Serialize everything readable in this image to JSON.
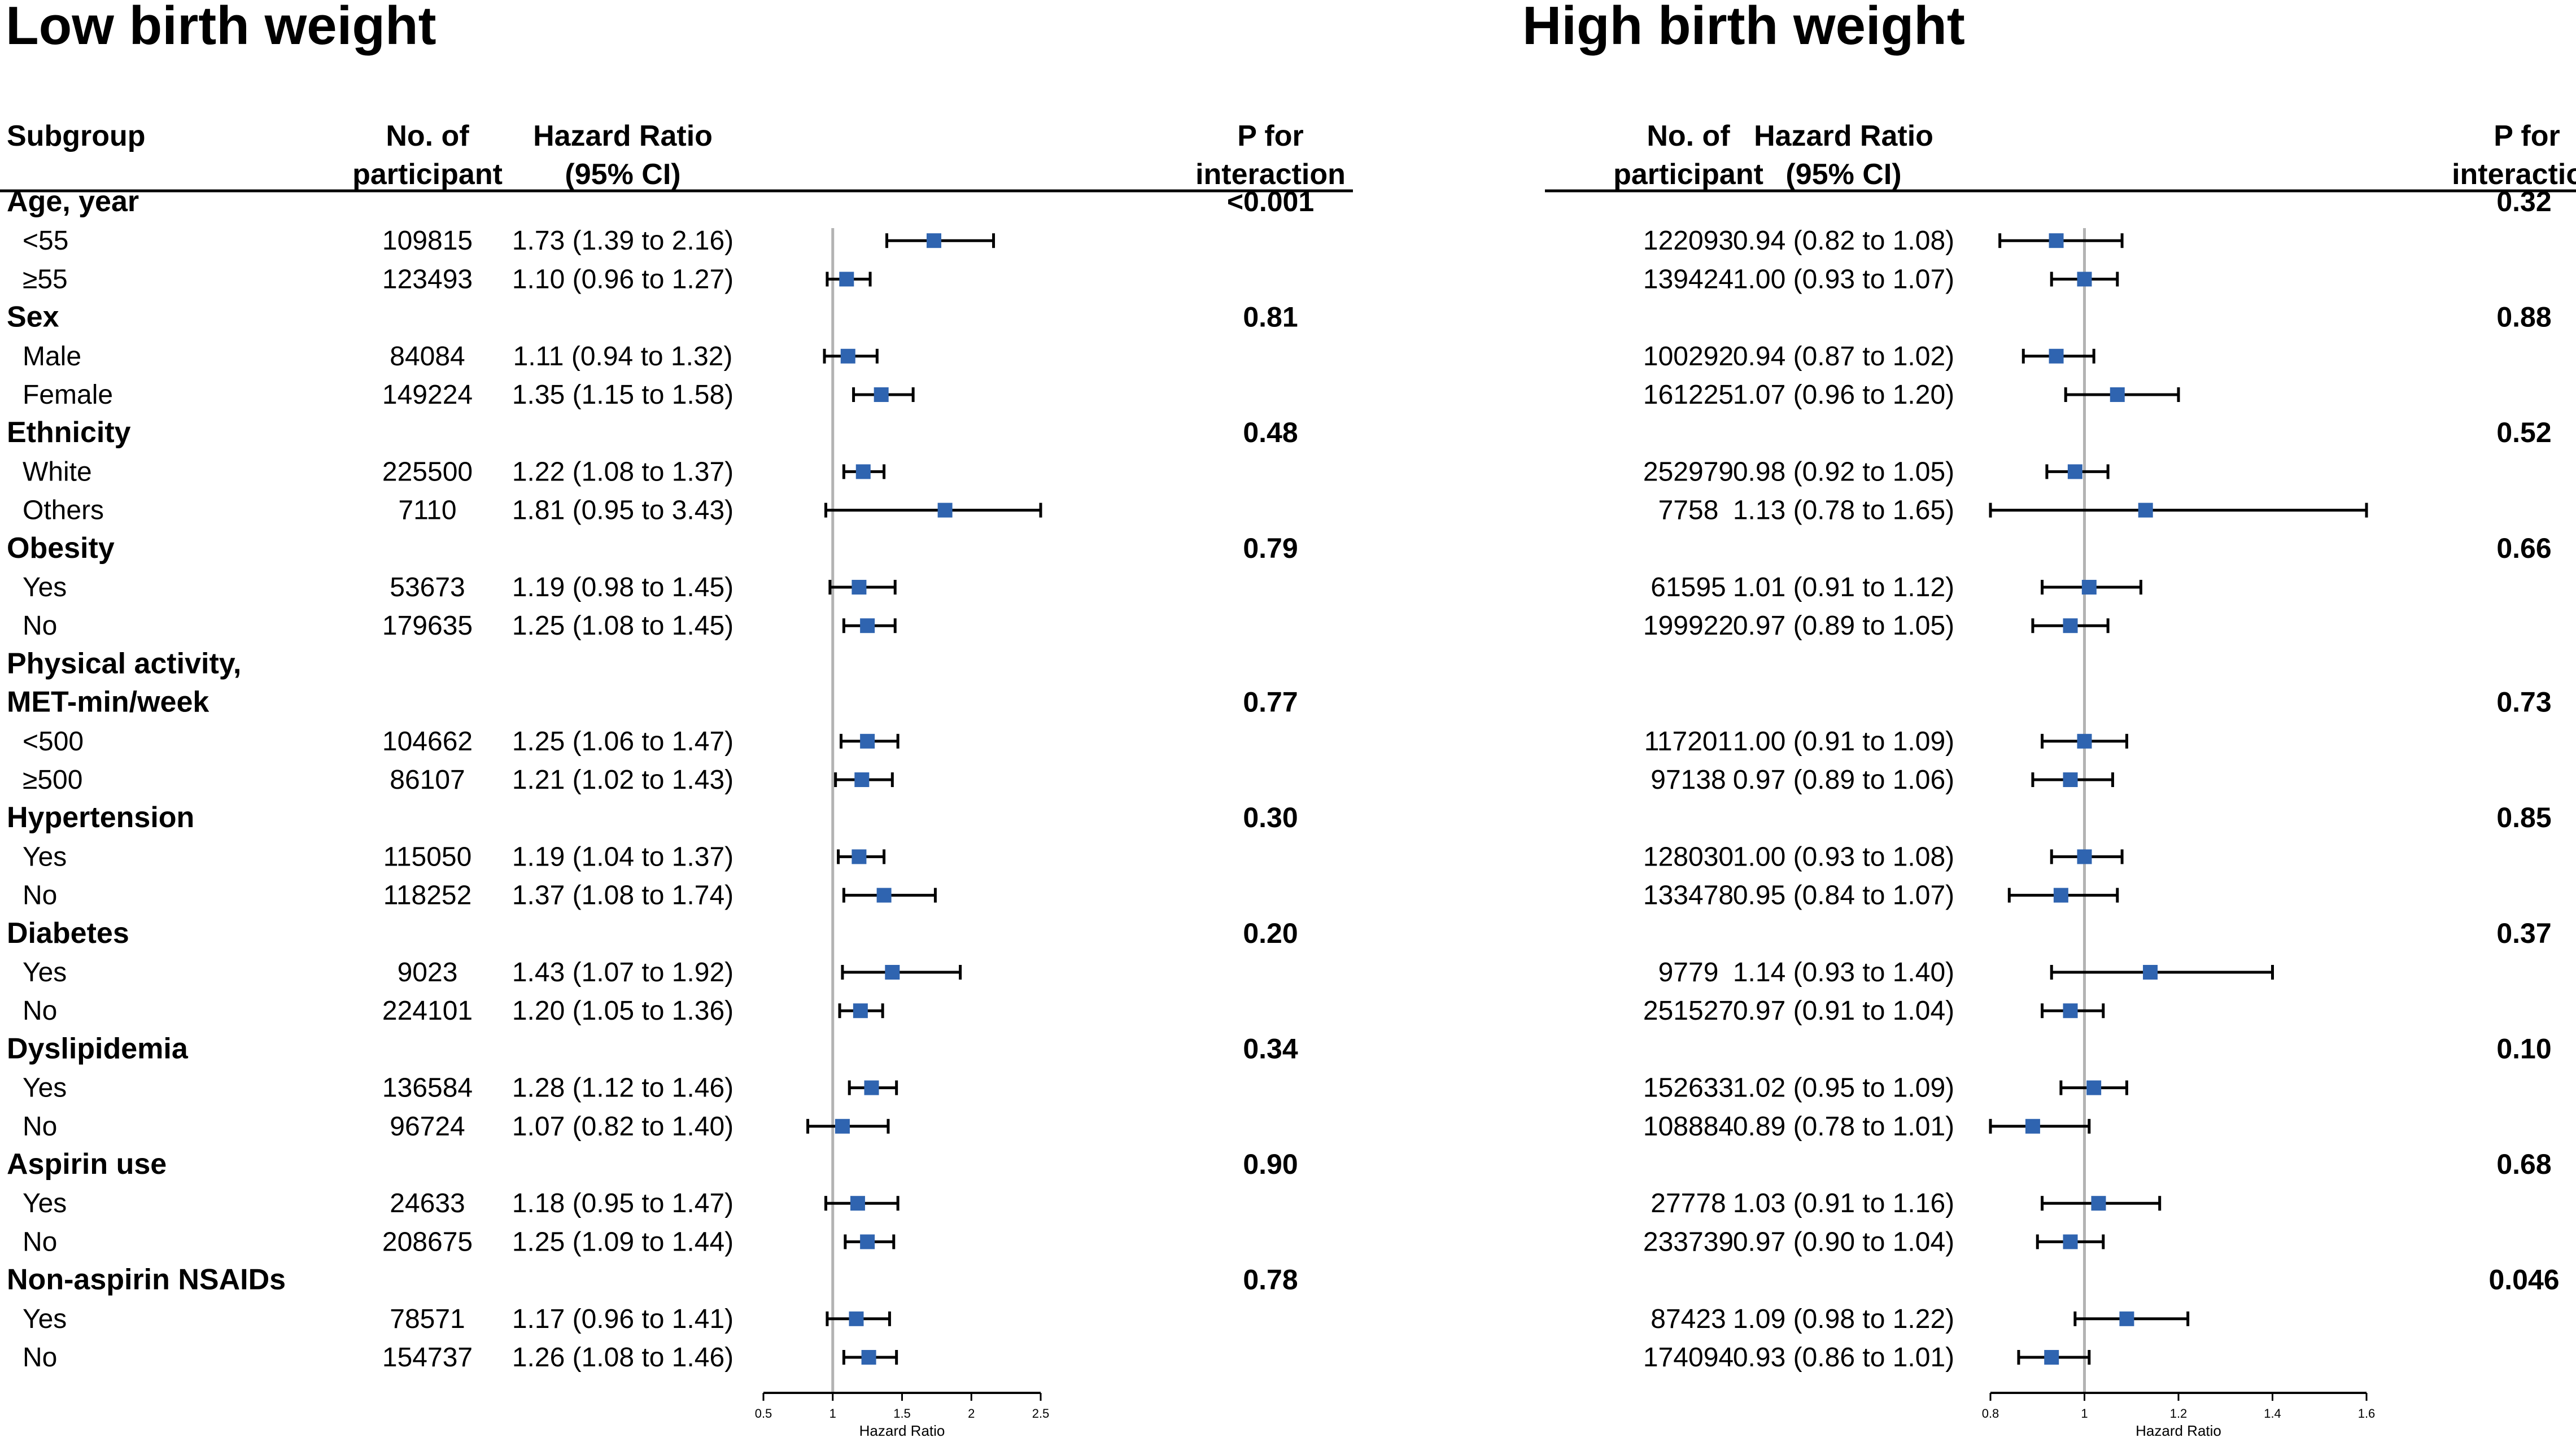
{
  "chart_data": [
    {
      "type": "forest",
      "title": "Low birth weight",
      "headers": {
        "subgroup": [
          "Subgroup"
        ],
        "n": [
          "No. of",
          "participant"
        ],
        "hr": [
          "Hazard Ratio",
          "(95% CI)"
        ],
        "p": [
          "P for",
          "interaction"
        ]
      },
      "xlabel": "Hazard Ratio",
      "xlim": [
        0.5,
        2.5
      ],
      "xticks": [
        "0.5",
        "1",
        "1.5",
        "2",
        "2.5"
      ],
      "reference": 1,
      "rows": [
        {
          "group": "Age, year",
          "p": "<0.001"
        },
        {
          "label": "<55",
          "n": "109815",
          "hr_text": "1.73 (1.39 to 2.16)",
          "hr": 1.73,
          "lo": 1.39,
          "hi": 2.16
        },
        {
          "label": "≥55",
          "n": "123493",
          "hr_text": "1.10 (0.96 to 1.27)",
          "hr": 1.1,
          "lo": 0.96,
          "hi": 1.27
        },
        {
          "group": "Sex",
          "p": "0.81"
        },
        {
          "label": "Male",
          "n": "84084",
          "hr_text": "1.11 (0.94 to 1.32)",
          "hr": 1.11,
          "lo": 0.94,
          "hi": 1.32
        },
        {
          "label": "Female",
          "n": "149224",
          "hr_text": "1.35 (1.15 to 1.58)",
          "hr": 1.35,
          "lo": 1.15,
          "hi": 1.58
        },
        {
          "group": "Ethnicity",
          "p": "0.48"
        },
        {
          "label": "White",
          "n": "225500",
          "hr_text": "1.22 (1.08 to 1.37)",
          "hr": 1.22,
          "lo": 1.08,
          "hi": 1.37
        },
        {
          "label": "Others",
          "n": "7110",
          "hr_text": "1.81 (0.95 to 3.43)",
          "hr": 1.81,
          "lo": 0.95,
          "hi": 3.43
        },
        {
          "group": "Obesity",
          "p": "0.79"
        },
        {
          "label": "Yes",
          "n": "53673",
          "hr_text": "1.19 (0.98 to 1.45)",
          "hr": 1.19,
          "lo": 0.98,
          "hi": 1.45
        },
        {
          "label": "No",
          "n": "179635",
          "hr_text": "1.25 (1.08 to 1.45)",
          "hr": 1.25,
          "lo": 1.08,
          "hi": 1.45
        },
        {
          "group": "Physical activity,"
        },
        {
          "group": "MET-min/week",
          "p": "0.77"
        },
        {
          "label": "<500",
          "n": "104662",
          "hr_text": "1.25 (1.06 to 1.47)",
          "hr": 1.25,
          "lo": 1.06,
          "hi": 1.47
        },
        {
          "label": "≥500",
          "n": "86107",
          "hr_text": "1.21 (1.02 to 1.43)",
          "hr": 1.21,
          "lo": 1.02,
          "hi": 1.43
        },
        {
          "group": "Hypertension",
          "p": "0.30"
        },
        {
          "label": "Yes",
          "n": "115050",
          "hr_text": "1.19 (1.04 to 1.37)",
          "hr": 1.19,
          "lo": 1.04,
          "hi": 1.37
        },
        {
          "label": "No",
          "n": "118252",
          "hr_text": "1.37 (1.08 to 1.74)",
          "hr": 1.37,
          "lo": 1.08,
          "hi": 1.74
        },
        {
          "group": "Diabetes",
          "p": "0.20"
        },
        {
          "label": "Yes",
          "n": "9023",
          "hr_text": "1.43 (1.07 to 1.92)",
          "hr": 1.43,
          "lo": 1.07,
          "hi": 1.92
        },
        {
          "label": "No",
          "n": "224101",
          "hr_text": "1.20 (1.05 to 1.36)",
          "hr": 1.2,
          "lo": 1.05,
          "hi": 1.36
        },
        {
          "group": "Dyslipidemia",
          "p": "0.34"
        },
        {
          "label": "Yes",
          "n": "136584",
          "hr_text": "1.28 (1.12 to 1.46)",
          "hr": 1.28,
          "lo": 1.12,
          "hi": 1.46
        },
        {
          "label": "No",
          "n": "96724",
          "hr_text": "1.07 (0.82 to 1.40)",
          "hr": 1.07,
          "lo": 0.82,
          "hi": 1.4
        },
        {
          "group": "Aspirin use",
          "p": "0.90"
        },
        {
          "label": "Yes",
          "n": "24633",
          "hr_text": "1.18 (0.95 to 1.47)",
          "hr": 1.18,
          "lo": 0.95,
          "hi": 1.47
        },
        {
          "label": "No",
          "n": "208675",
          "hr_text": "1.25 (1.09 to 1.44)",
          "hr": 1.25,
          "lo": 1.09,
          "hi": 1.44
        },
        {
          "group": "Non-aspirin NSAIDs",
          "p": "0.78"
        },
        {
          "label": "Yes",
          "n": "78571",
          "hr_text": "1.17 (0.96 to 1.41)",
          "hr": 1.17,
          "lo": 0.96,
          "hi": 1.41
        },
        {
          "label": "No",
          "n": "154737",
          "hr_text": "1.26 (1.08 to 1.46)",
          "hr": 1.26,
          "lo": 1.08,
          "hi": 1.46
        }
      ]
    },
    {
      "type": "forest",
      "title": "High birth weight",
      "headers": {
        "n": [
          "No. of",
          "participant"
        ],
        "hr": [
          "Hazard Ratio",
          "(95% CI)"
        ],
        "p": [
          "P for",
          "interaction"
        ]
      },
      "xlabel": "Hazard Ratio",
      "xlim": [
        0.8,
        1.6
      ],
      "xticks": [
        "0.8",
        "1",
        "1.2",
        "1.4",
        "1.6"
      ],
      "reference": 1,
      "rows": [
        {
          "group": "",
          "p": "0.32"
        },
        {
          "n": "122093",
          "hr_text": "0.94 (0.82 to 1.08)",
          "hr": 0.94,
          "lo": 0.82,
          "hi": 1.08
        },
        {
          "n": "139424",
          "hr_text": "1.00 (0.93 to 1.07)",
          "hr": 1.0,
          "lo": 0.93,
          "hi": 1.07
        },
        {
          "group": "",
          "p": "0.88"
        },
        {
          "n": "100292",
          "hr_text": "0.94 (0.87 to 1.02)",
          "hr": 0.94,
          "lo": 0.87,
          "hi": 1.02
        },
        {
          "n": "161225",
          "hr_text": "1.07 (0.96 to 1.20)",
          "hr": 1.07,
          "lo": 0.96,
          "hi": 1.2
        },
        {
          "group": "",
          "p": "0.52"
        },
        {
          "n": "252979",
          "hr_text": "0.98 (0.92 to 1.05)",
          "hr": 0.98,
          "lo": 0.92,
          "hi": 1.05
        },
        {
          "n": "7758",
          "hr_text": "1.13 (0.78 to 1.65)",
          "hr": 1.13,
          "lo": 0.78,
          "hi": 1.65
        },
        {
          "group": "",
          "p": "0.66"
        },
        {
          "n": "61595",
          "hr_text": "1.01 (0.91 to 1.12)",
          "hr": 1.01,
          "lo": 0.91,
          "hi": 1.12
        },
        {
          "n": "199922",
          "hr_text": "0.97 (0.89 to 1.05)",
          "hr": 0.97,
          "lo": 0.89,
          "hi": 1.05
        },
        {
          "group": ""
        },
        {
          "group": "",
          "p": "0.73"
        },
        {
          "n": "117201",
          "hr_text": "1.00 (0.91 to 1.09)",
          "hr": 1.0,
          "lo": 0.91,
          "hi": 1.09
        },
        {
          "n": "97138",
          "hr_text": "0.97 (0.89 to 1.06)",
          "hr": 0.97,
          "lo": 0.89,
          "hi": 1.06
        },
        {
          "group": "",
          "p": "0.85"
        },
        {
          "n": "128030",
          "hr_text": "1.00 (0.93 to 1.08)",
          "hr": 1.0,
          "lo": 0.93,
          "hi": 1.08
        },
        {
          "n": "133478",
          "hr_text": "0.95 (0.84 to 1.07)",
          "hr": 0.95,
          "lo": 0.84,
          "hi": 1.07
        },
        {
          "group": "",
          "p": "0.37"
        },
        {
          "n": "9779",
          "hr_text": "1.14 (0.93 to 1.40)",
          "hr": 1.14,
          "lo": 0.93,
          "hi": 1.4
        },
        {
          "n": "251527",
          "hr_text": "0.97 (0.91 to 1.04)",
          "hr": 0.97,
          "lo": 0.91,
          "hi": 1.04
        },
        {
          "group": "",
          "p": "0.10"
        },
        {
          "n": "152633",
          "hr_text": "1.02 (0.95 to 1.09)",
          "hr": 1.02,
          "lo": 0.95,
          "hi": 1.09
        },
        {
          "n": "108884",
          "hr_text": "0.89 (0.78 to 1.01)",
          "hr": 0.89,
          "lo": 0.78,
          "hi": 1.01
        },
        {
          "group": "",
          "p": "0.68"
        },
        {
          "n": "27778",
          "hr_text": "1.03 (0.91 to 1.16)",
          "hr": 1.03,
          "lo": 0.91,
          "hi": 1.16
        },
        {
          "n": "233739",
          "hr_text": "0.97 (0.90 to 1.04)",
          "hr": 0.97,
          "lo": 0.9,
          "hi": 1.04
        },
        {
          "group": "",
          "p": "0.046"
        },
        {
          "n": "87423",
          "hr_text": "1.09 (0.98 to 1.22)",
          "hr": 1.09,
          "lo": 0.98,
          "hi": 1.22
        },
        {
          "n": "174094",
          "hr_text": "0.93 (0.86 to 1.01)",
          "hr": 0.93,
          "lo": 0.86,
          "hi": 1.01
        }
      ]
    }
  ],
  "colors": {
    "marker": "#2f64b0",
    "ci_line": "#000000",
    "reference_line": "#b3b3b3",
    "text": "#000000"
  }
}
